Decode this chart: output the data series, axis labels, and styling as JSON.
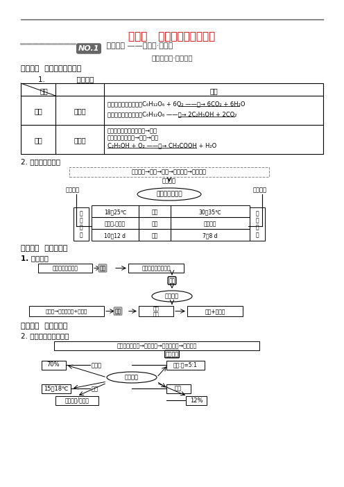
{
  "title": "第一讲   传统发酵技术的应用",
  "subtitle": "双基落实 ——系统化·问题化",
  "section_label": "【基础知识·系统化】",
  "zhishi1": "知识点一  果酒和果醋的制作",
  "zhishi2": "知识点二  腐乳的制作",
  "zhishi3": "知识点三  泡菜的制作",
  "background": "#ffffff",
  "text_color": "#000000",
  "red_color": "#cc0000",
  "make_principle": "1.              制作原理",
  "exp_design": "2. 实验设计与操作",
  "make_principle2": "1. 制作原理",
  "exp_process": "2. 实验流程及影响因素"
}
